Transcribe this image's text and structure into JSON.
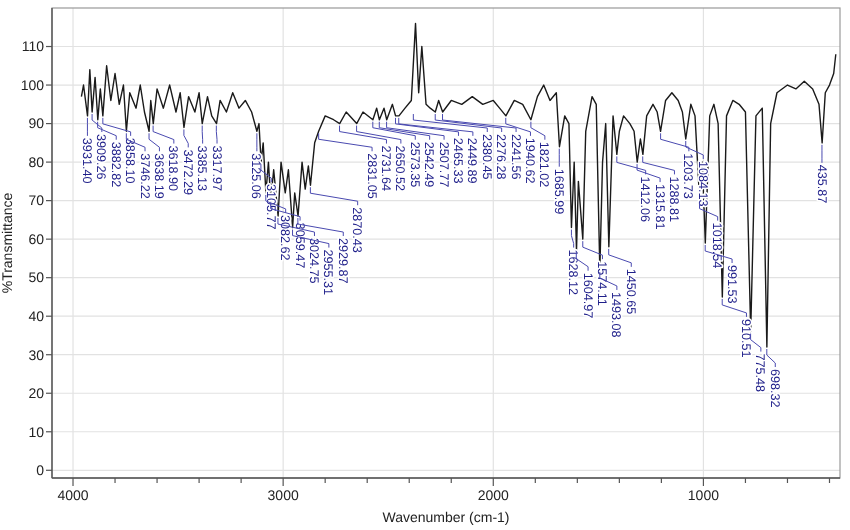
{
  "chart_data": {
    "type": "line",
    "xlabel": "Wavenumber (cm-1)",
    "ylabel": "%Transmittance",
    "xlim": [
      4100,
      350
    ],
    "ylim": [
      -2,
      120
    ],
    "xticks": [
      4000,
      {
        "value": 3800,
        "label": null
      },
      {
        "value": 3600,
        "label": null
      },
      {
        "value": 3400,
        "label": null
      },
      {
        "value": 3200,
        "label": null
      },
      3000,
      {
        "value": 2800,
        "label": null
      },
      {
        "value": 2600,
        "label": null
      },
      {
        "value": 2400,
        "label": null
      },
      {
        "value": 2200,
        "label": null
      },
      2000,
      {
        "value": 1800,
        "label": null
      },
      {
        "value": 1600,
        "label": null
      },
      {
        "value": 1400,
        "label": null
      },
      {
        "value": 1200,
        "label": null
      },
      1000,
      {
        "value": 800,
        "label": null
      },
      {
        "value": 600,
        "label": null
      },
      {
        "value": 400,
        "label": null
      }
    ],
    "yticks": [
      0,
      10,
      20,
      30,
      40,
      50,
      60,
      70,
      80,
      90,
      100,
      110
    ],
    "grid": true,
    "marker": "none",
    "line_style": "solid",
    "series": [
      {
        "color": "#1a1a1a",
        "x": [
          3960,
          3950,
          3931,
          3920,
          3909,
          3895,
          3882,
          3870,
          3858,
          3840,
          3820,
          3800,
          3780,
          3760,
          3746,
          3730,
          3700,
          3680,
          3660,
          3638,
          3630,
          3618,
          3600,
          3570,
          3540,
          3510,
          3490,
          3472,
          3450,
          3420,
          3400,
          3385,
          3360,
          3340,
          3317,
          3300,
          3270,
          3240,
          3210,
          3180,
          3150,
          3125,
          3115,
          3105,
          3095,
          3082,
          3070,
          3059,
          3045,
          3024,
          3010,
          2990,
          2975,
          2955,
          2945,
          2929,
          2910,
          2895,
          2880,
          2870,
          2850,
          2831,
          2800,
          2760,
          2731,
          2700,
          2650,
          2620,
          2573,
          2555,
          2542,
          2520,
          2507,
          2480,
          2465,
          2449,
          2420,
          2390,
          2370,
          2355,
          2340,
          2320,
          2300,
          2276,
          2260,
          2241,
          2200,
          2150,
          2100,
          2050,
          2000,
          1970,
          1940,
          1900,
          1860,
          1821,
          1790,
          1760,
          1730,
          1700,
          1685,
          1660,
          1640,
          1628,
          1615,
          1604,
          1595,
          1574,
          1560,
          1530,
          1510,
          1493,
          1480,
          1465,
          1450,
          1430,
          1412,
          1400,
          1380,
          1350,
          1330,
          1315,
          1300,
          1288,
          1270,
          1240,
          1220,
          1204,
          1180,
          1150,
          1120,
          1100,
          1084,
          1060,
          1040,
          1018,
          1005,
          991,
          970,
          950,
          930,
          910,
          890,
          860,
          830,
          800,
          775,
          750,
          720,
          698,
          680,
          650,
          600,
          560,
          520,
          480,
          450,
          435,
          420,
          400,
          380,
          370
        ],
        "values": [
          97,
          100,
          92,
          104,
          93,
          102,
          91,
          99,
          92,
          105,
          96,
          103,
          95,
          100,
          88,
          98,
          94,
          100,
          93,
          88,
          96,
          90,
          99,
          94,
          100,
          93,
          98,
          89,
          97,
          93,
          98,
          90,
          97,
          92,
          90,
          96,
          93,
          98,
          94,
          96,
          93,
          88,
          90,
          80,
          85,
          72,
          80,
          70,
          78,
          66,
          80,
          72,
          78,
          63,
          72,
          66,
          80,
          73,
          79,
          74,
          85,
          88,
          92,
          91,
          90,
          93,
          90,
          93,
          91,
          94,
          91,
          94,
          91,
          95,
          92,
          92,
          94,
          96,
          116,
          98,
          110,
          95,
          94,
          93,
          96,
          93,
          96,
          95,
          97,
          95,
          96,
          94,
          92,
          96,
          95,
          91,
          97,
          100,
          96,
          98,
          84,
          92,
          90,
          63,
          80,
          57,
          75,
          60,
          88,
          97,
          95,
          52,
          80,
          90,
          58,
          92,
          82,
          88,
          92,
          90,
          88,
          80,
          86,
          82,
          92,
          95,
          93,
          88,
          96,
          98,
          96,
          93,
          86,
          95,
          92,
          70,
          80,
          59,
          92,
          95,
          90,
          45,
          92,
          96,
          95,
          93,
          36,
          92,
          94,
          32,
          90,
          98,
          100,
          99,
          101,
          99,
          95,
          85,
          98,
          100,
          103,
          108
        ]
      }
    ],
    "annotations": [
      {
        "text": "3931.40",
        "x": 3931.4,
        "y": 92
      },
      {
        "text": "3909.26",
        "x": 3909.26,
        "y": 93
      },
      {
        "text": "3882.82",
        "x": 3882.82,
        "y": 91
      },
      {
        "text": "3858.10",
        "x": 3858.1,
        "y": 92
      },
      {
        "text": "3746.22",
        "x": 3746.22,
        "y": 88
      },
      {
        "text": "3638.19",
        "x": 3638.19,
        "y": 88
      },
      {
        "text": "3618.90",
        "x": 3618.9,
        "y": 90
      },
      {
        "text": "3472.29",
        "x": 3472.29,
        "y": 89
      },
      {
        "text": "3385.13",
        "x": 3385.13,
        "y": 90
      },
      {
        "text": "3317.97",
        "x": 3317.97,
        "y": 90
      },
      {
        "text": "3125.06",
        "x": 3125.06,
        "y": 88
      },
      {
        "text": "3105.77",
        "x": 3105.77,
        "y": 80
      },
      {
        "text": "3082.62",
        "x": 3082.62,
        "y": 72
      },
      {
        "text": "3059.47",
        "x": 3059.47,
        "y": 70
      },
      {
        "text": "3024.75",
        "x": 3024.75,
        "y": 66
      },
      {
        "text": "2955.31",
        "x": 2955.31,
        "y": 63
      },
      {
        "text": "2929.87",
        "x": 2929.87,
        "y": 66
      },
      {
        "text": "2870.43",
        "x": 2870.43,
        "y": 74
      },
      {
        "text": "2831.05",
        "x": 2831.05,
        "y": 88
      },
      {
        "text": "2731.64",
        "x": 2731.64,
        "y": 90
      },
      {
        "text": "2650.52",
        "x": 2650.52,
        "y": 90
      },
      {
        "text": "2573.35",
        "x": 2573.35,
        "y": 91
      },
      {
        "text": "2542.49",
        "x": 2542.49,
        "y": 91
      },
      {
        "text": "2507.77",
        "x": 2507.77,
        "y": 91
      },
      {
        "text": "2465.33",
        "x": 2465.33,
        "y": 92
      },
      {
        "text": "2449.89",
        "x": 2449.89,
        "y": 92
      },
      {
        "text": "2380.45",
        "x": 2380.45,
        "y": 93
      },
      {
        "text": "2276.28",
        "x": 2276.28,
        "y": 93
      },
      {
        "text": "2241.56",
        "x": 2241.56,
        "y": 93
      },
      {
        "text": "1940.62",
        "x": 1940.62,
        "y": 92
      },
      {
        "text": "1821.02",
        "x": 1821.02,
        "y": 91
      },
      {
        "text": "1685.99",
        "x": 1685.99,
        "y": 84
      },
      {
        "text": "1628.12",
        "x": 1628.12,
        "y": 63
      },
      {
        "text": "1604.97",
        "x": 1604.97,
        "y": 57
      },
      {
        "text": "1574.11",
        "x": 1574.11,
        "y": 60
      },
      {
        "text": "1493.08",
        "x": 1493.08,
        "y": 52
      },
      {
        "text": "1450.65",
        "x": 1450.65,
        "y": 58
      },
      {
        "text": "1412.06",
        "x": 1412.06,
        "y": 82
      },
      {
        "text": "1315.81",
        "x": 1315.81,
        "y": 80
      },
      {
        "text": "1288.81",
        "x": 1288.81,
        "y": 82
      },
      {
        "text": "1203.73",
        "x": 1203.73,
        "y": 88
      },
      {
        "text": "1084.13",
        "x": 1084.13,
        "y": 86
      },
      {
        "text": "1018.54",
        "x": 1018.54,
        "y": 70
      },
      {
        "text": "991.53",
        "x": 991.53,
        "y": 59
      },
      {
        "text": "910.51",
        "x": 910.51,
        "y": 45
      },
      {
        "text": "775.48",
        "x": 775.48,
        "y": 36
      },
      {
        "text": "698.32",
        "x": 698.32,
        "y": 32
      },
      {
        "text": "435.87",
        "x": 435.87,
        "y": 85
      }
    ]
  }
}
